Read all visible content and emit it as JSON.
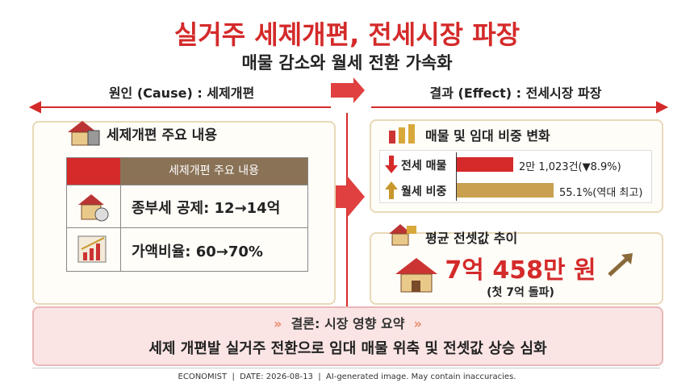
{
  "header": {
    "title": "실거주 세제개편, 전세시장 파장",
    "subtitle": "매물 감소와 월세 전환 가속화"
  },
  "cause": {
    "heading": "원인 (Cause) : 세제개편",
    "panel_title": "세제개편 주요 내용",
    "table": {
      "header": "세제개편 주요 내용",
      "rows": [
        "종부세 공제: 12→14억",
        "가액비율: 60→70%"
      ]
    }
  },
  "effect": {
    "heading": "결과 (Effect) : 전세시장 파장",
    "change": {
      "title": "매물 및 임대 비중 변화",
      "rows": [
        {
          "label": "전세 매물",
          "value": "2만 1,023건(▼8.9%)"
        },
        {
          "label": "월세 비중",
          "value": "55.1%(역대 최고)"
        }
      ]
    },
    "price": {
      "title": "평균 전셋값 추이",
      "value": "7억 458만 원",
      "note": "(첫 7억 돌파)"
    }
  },
  "conclusion": {
    "title": "결론: 시장 영향 요약",
    "text": "세제 개편발 실거주 전환으로 임대 매물 위축 및 전셋값 상승 심화"
  },
  "footer": "ECONOMIST  |  DATE: 2026-08-13  |  AI-generated image. May contain inaccuracies."
}
